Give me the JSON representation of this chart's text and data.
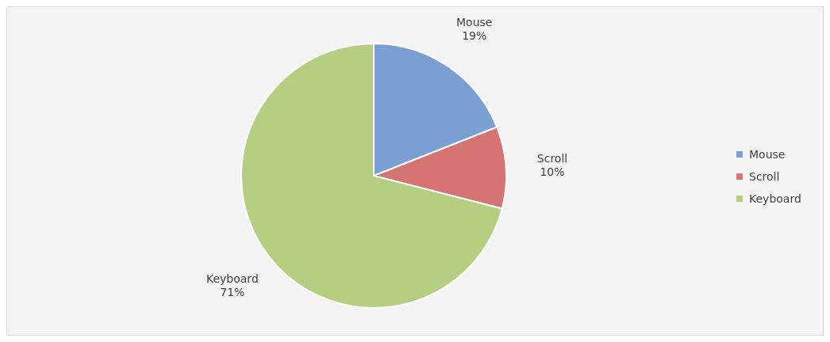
{
  "chart_data": {
    "type": "pie",
    "categories": [
      "Mouse",
      "Scroll",
      "Keyboard"
    ],
    "values": [
      19,
      10,
      71
    ],
    "colors": [
      "#7a9fd3",
      "#d67473",
      "#b4cf82"
    ],
    "value_labels": [
      "19%",
      "10%",
      "71%"
    ],
    "legend": "right"
  }
}
